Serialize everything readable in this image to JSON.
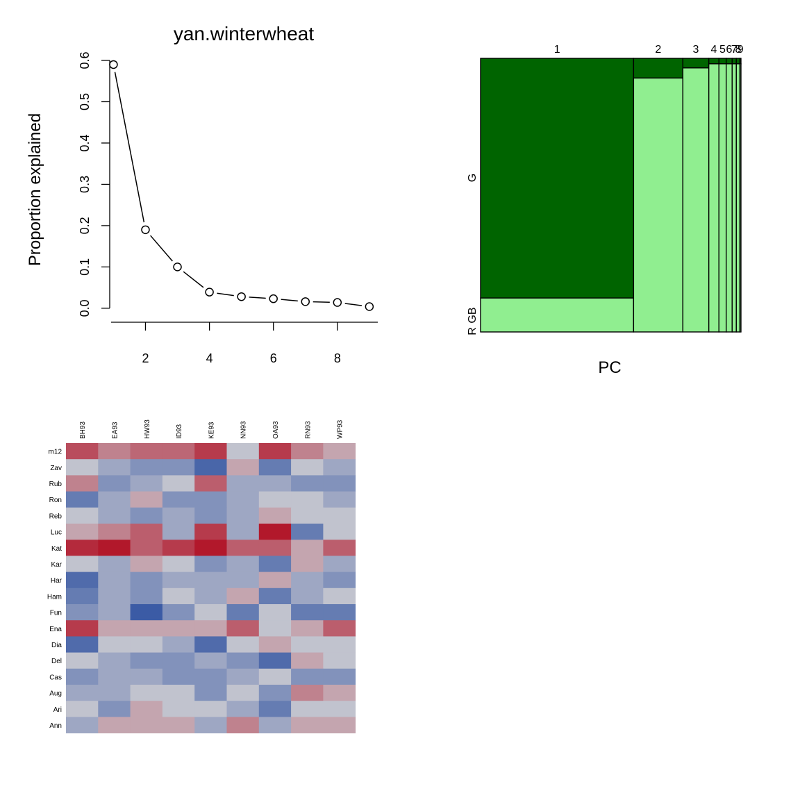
{
  "chart_data": [
    {
      "type": "line",
      "title": "yan.winterwheat",
      "xlabel": "",
      "ylabel": "Proportion explained",
      "x": [
        1,
        2,
        3,
        4,
        5,
        6,
        7,
        8,
        9
      ],
      "values": [
        0.59,
        0.19,
        0.1,
        0.039,
        0.028,
        0.023,
        0.016,
        0.014,
        0.004
      ],
      "xlim": [
        0.6,
        9.35
      ],
      "ylim": [
        -0.012,
        0.6
      ],
      "xticks": [
        2,
        4,
        6,
        8
      ],
      "yticks": [
        0.0,
        0.1,
        0.2,
        0.3,
        0.4,
        0.5,
        0.6
      ],
      "ytick_labels": [
        "0.0",
        "0.1",
        "0.2",
        "0.3",
        "0.4",
        "0.5",
        "0.6"
      ],
      "marker": "open-circle",
      "grid": false
    },
    {
      "type": "bar",
      "stacked": true,
      "variable_width": true,
      "xlabel": "PC",
      "categories": [
        "1",
        "2",
        "3",
        "4",
        "5",
        "6",
        "7",
        "8",
        "9"
      ],
      "width_values": [
        0.59,
        0.19,
        0.1,
        0.039,
        0.028,
        0.023,
        0.016,
        0.014,
        0.004
      ],
      "series": [
        {
          "name": "G",
          "color": "#006400",
          "values": [
            0.876,
            0.072,
            0.035,
            0.02,
            0.02,
            0.02,
            0.02,
            0.02,
            0.02
          ]
        },
        {
          "name": "GB",
          "color": "#90ee90",
          "values": [
            0.124,
            0.928,
            0.965,
            0.98,
            0.98,
            0.98,
            0.98,
            0.98,
            0.98
          ]
        },
        {
          "name": "R",
          "color": "#ffffff",
          "values": [
            0,
            0,
            0,
            0,
            0,
            0,
            0,
            0,
            0
          ]
        }
      ],
      "y_labels": [
        "G",
        "GB",
        "R"
      ]
    },
    {
      "type": "heatmap",
      "columns": [
        "BH93",
        "EA93",
        "HW93",
        "ID93",
        "KE93",
        "NN93",
        "OA93",
        "RN93",
        "WP93"
      ],
      "rows": [
        "m12",
        "Zav",
        "Rub",
        "Ron",
        "Reb",
        "Luc",
        "Kat",
        "Kar",
        "Har",
        "Ham",
        "Fun",
        "Ena",
        "Dia",
        "Del",
        "Cas",
        "Aug",
        "Ari",
        "Ann"
      ],
      "values": [
        [
          0.7,
          0.4,
          0.55,
          0.55,
          0.8,
          -0.05,
          0.8,
          0.4,
          0.2
        ],
        [
          -0.05,
          -0.3,
          -0.5,
          -0.5,
          -0.9,
          0.2,
          -0.7,
          -0.05,
          -0.3
        ],
        [
          0.4,
          -0.5,
          -0.3,
          -0.05,
          0.6,
          -0.3,
          -0.3,
          -0.5,
          -0.5
        ],
        [
          -0.7,
          -0.3,
          0.2,
          -0.5,
          -0.5,
          -0.3,
          -0.05,
          -0.05,
          -0.3
        ],
        [
          -0.05,
          -0.3,
          -0.5,
          -0.3,
          -0.5,
          -0.3,
          0.2,
          -0.05,
          -0.05
        ],
        [
          0.2,
          0.4,
          0.6,
          -0.3,
          0.8,
          -0.3,
          1.0,
          -0.7,
          -0.05
        ],
        [
          0.9,
          1.0,
          0.6,
          0.8,
          1.0,
          0.6,
          0.6,
          0.2,
          0.6
        ],
        [
          -0.05,
          -0.3,
          0.2,
          -0.05,
          -0.5,
          -0.3,
          -0.7,
          0.2,
          -0.3
        ],
        [
          -0.85,
          -0.3,
          -0.5,
          -0.3,
          -0.3,
          -0.3,
          0.2,
          -0.3,
          -0.5
        ],
        [
          -0.7,
          -0.3,
          -0.5,
          -0.05,
          -0.3,
          0.2,
          -0.7,
          -0.3,
          -0.05
        ],
        [
          -0.5,
          -0.3,
          -1.0,
          -0.5,
          -0.05,
          -0.7,
          -0.05,
          -0.7,
          -0.7
        ],
        [
          0.8,
          0.2,
          0.2,
          0.2,
          0.2,
          0.6,
          -0.05,
          0.2,
          0.6
        ],
        [
          -0.85,
          -0.05,
          -0.05,
          -0.3,
          -0.85,
          -0.05,
          0.2,
          -0.05,
          -0.05
        ],
        [
          -0.05,
          -0.3,
          -0.5,
          -0.5,
          -0.3,
          -0.5,
          -0.85,
          0.2,
          -0.05
        ],
        [
          -0.5,
          -0.3,
          -0.3,
          -0.5,
          -0.5,
          -0.3,
          -0.05,
          -0.5,
          -0.5
        ],
        [
          -0.3,
          -0.3,
          -0.05,
          -0.05,
          -0.5,
          -0.05,
          -0.5,
          0.4,
          0.2
        ],
        [
          -0.05,
          -0.5,
          0.2,
          -0.05,
          -0.05,
          -0.3,
          -0.7,
          -0.05,
          -0.05
        ],
        [
          -0.3,
          0.2,
          0.2,
          0.2,
          -0.3,
          0.4,
          -0.3,
          0.2,
          0.2
        ]
      ],
      "color_low": "#3b5ba5",
      "color_mid": "#c8c8d0",
      "color_high": "#b2182b"
    }
  ]
}
